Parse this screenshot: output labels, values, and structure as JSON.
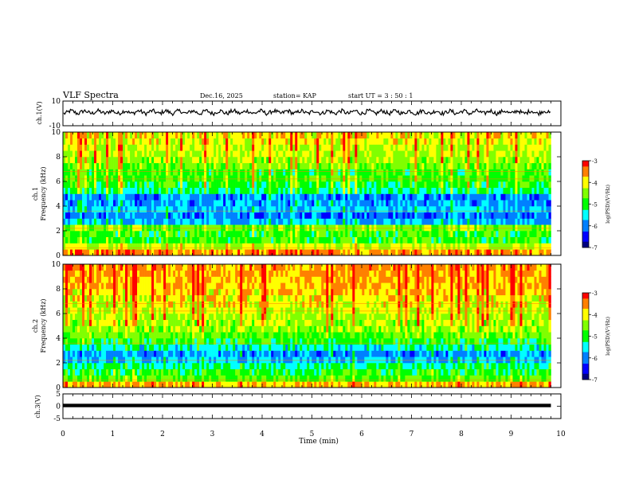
{
  "header": {
    "title": "VLF Spectra",
    "date": "Dec.16, 2025",
    "station": "station= KAP",
    "start": "start  UT =  3 : 50 : 1"
  },
  "chart_data": [
    {
      "type": "line",
      "name": "ch1-waveform",
      "ylabel": "ch.1(V)",
      "ylim": [
        -10,
        10
      ],
      "yticks": [
        "10",
        "-10"
      ],
      "xlim": [
        0,
        10
      ],
      "x_end": 9.8,
      "base_level": 1.0,
      "amplitude": 6
    },
    {
      "type": "heatmap",
      "name": "ch1-spectrogram",
      "ylabel": "ch.1",
      "ylabel2": "Frequency (kHz)",
      "ylim": [
        0,
        10
      ],
      "yticks": [
        "10",
        "8",
        "6",
        "4",
        "2",
        "0"
      ],
      "xlim": [
        0,
        10
      ],
      "x_end": 9.8,
      "freq_bins": [
        0.25,
        0.75,
        1.25,
        1.75,
        2.25,
        2.75,
        3.25,
        3.75,
        4.25,
        4.75,
        5.25,
        5.75,
        6.25,
        6.75,
        7.25,
        7.75,
        8.25,
        8.75,
        9.25,
        9.75
      ],
      "mean_log_psd": [
        -3.6,
        -4.3,
        -4.9,
        -4.9,
        -4.6,
        -5.8,
        -6.0,
        -5.7,
        -5.9,
        -6.0,
        -5.2,
        -5.0,
        -4.8,
        -4.9,
        -4.6,
        -4.4,
        -4.3,
        -4.2,
        -4.1,
        -4.0
      ],
      "colorbar": {
        "min": -7,
        "max": -3,
        "ticks": [
          "-3",
          "-4",
          "-5",
          "-6",
          "-7"
        ],
        "label": "log(PSD)(V²/Hz)"
      }
    },
    {
      "type": "heatmap",
      "name": "ch2-spectrogram",
      "ylabel": "ch.2",
      "ylabel2": "Frequency (kHz)",
      "ylim": [
        0,
        10
      ],
      "yticks": [
        "10",
        "8",
        "6",
        "4",
        "2",
        "0"
      ],
      "xlim": [
        0,
        10
      ],
      "x_end": 9.8,
      "freq_bins": [
        0.25,
        0.75,
        1.25,
        1.75,
        2.25,
        2.75,
        3.25,
        3.75,
        4.25,
        4.75,
        5.25,
        5.75,
        6.25,
        6.75,
        7.25,
        7.75,
        8.25,
        8.75,
        9.25,
        9.75
      ],
      "mean_log_psd": [
        -3.8,
        -4.8,
        -5.0,
        -5.3,
        -5.8,
        -5.9,
        -5.4,
        -5.0,
        -4.7,
        -4.5,
        -4.4,
        -4.3,
        -4.2,
        -4.1,
        -4.0,
        -3.9,
        -3.8,
        -3.7,
        -3.7,
        -3.6
      ],
      "colorbar": {
        "min": -7,
        "max": -3,
        "ticks": [
          "-3",
          "-4",
          "-5",
          "-6",
          "-7"
        ],
        "label": "log(PSD)(V²/Hz)"
      }
    },
    {
      "type": "line",
      "name": "ch3-waveform",
      "ylabel": "ch.3(V)",
      "ylim": [
        -5,
        5
      ],
      "yticks": [
        "5",
        "0",
        "-5"
      ],
      "xlim": [
        0,
        10
      ],
      "x_end": 9.8,
      "band": [
        0.25,
        1.0
      ]
    }
  ],
  "xaxis": {
    "label": "Time (min)",
    "ticks": [
      "0",
      "1",
      "2",
      "3",
      "4",
      "5",
      "6",
      "7",
      "8",
      "9",
      "10"
    ]
  },
  "colors": {
    "scale": [
      "#000080",
      "#0000ff",
      "#0080ff",
      "#00ffff",
      "#00ff00",
      "#80ff00",
      "#ffff00",
      "#ff8000",
      "#ff0000"
    ]
  }
}
